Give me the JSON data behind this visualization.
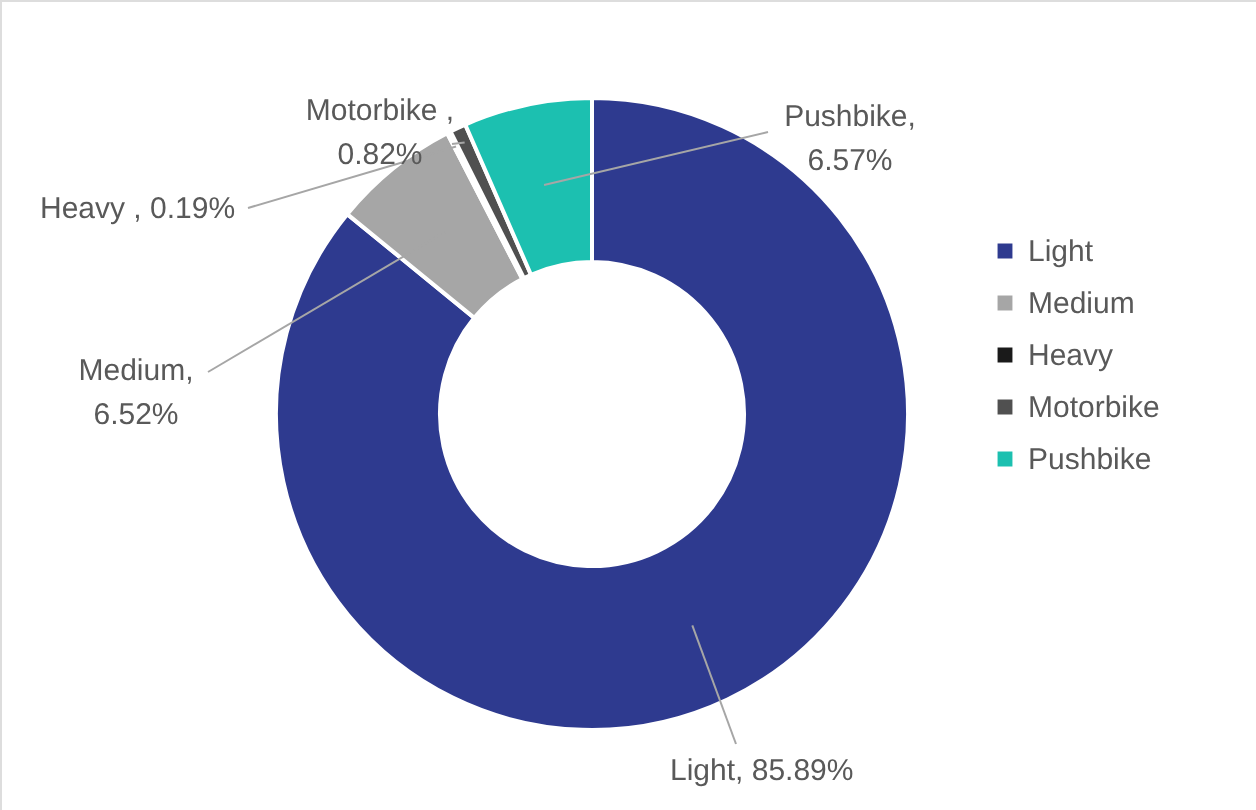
{
  "chart_data": {
    "type": "donut",
    "categories": [
      "Light",
      "Medium",
      "Heavy",
      "Motorbike",
      "Pushbike"
    ],
    "values": [
      85.89,
      6.52,
      0.19,
      0.82,
      6.57
    ],
    "colors": [
      "#2e3a8f",
      "#a6a6a6",
      "#1a1a1a",
      "#505050",
      "#1cc0b0"
    ],
    "value_labels": [
      "Light, 85.89%",
      "Medium,\n6.52%",
      "Heavy , 0.19%",
      "Motorbike ,\n0.82%",
      "Pushbike,\n6.57%"
    ],
    "legend": "right"
  }
}
